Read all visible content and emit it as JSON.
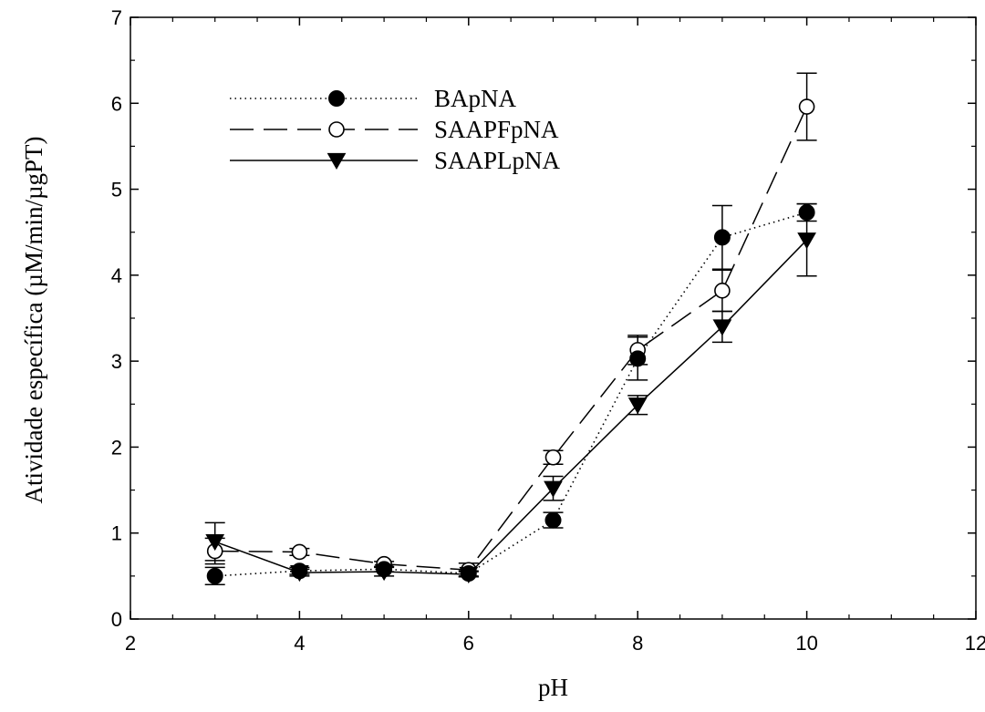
{
  "chart_data": {
    "type": "line",
    "title": "",
    "xlabel": "pH",
    "ylabel": "Atividade específica (µM/min/µgPT)",
    "xlim": [
      2,
      12
    ],
    "ylim": [
      0,
      7
    ],
    "x_ticks": [
      "2",
      "4",
      "6",
      "8",
      "10",
      "12"
    ],
    "y_ticks": [
      "0",
      "1",
      "2",
      "3",
      "4",
      "5",
      "6",
      "7"
    ],
    "grid": false,
    "legend_position": "top-left",
    "x": [
      3,
      4,
      5,
      6,
      7,
      8,
      9,
      10
    ],
    "series": [
      {
        "name": "BApNA",
        "marker": "filled-circle",
        "line_style": "dotted",
        "values": [
          0.5,
          0.56,
          0.58,
          0.53,
          1.15,
          3.03,
          4.44,
          4.73
        ],
        "error": [
          0.1,
          0.04,
          0.03,
          0.03,
          0.09,
          0.25,
          0.37,
          0.1
        ]
      },
      {
        "name": "SAAPFpNA",
        "marker": "open-circle",
        "line_style": "dashed",
        "values": [
          0.79,
          0.78,
          0.64,
          0.57,
          1.88,
          3.13,
          3.82,
          5.96
        ],
        "error": [
          0.15,
          0.04,
          0.03,
          0.08,
          0.08,
          0.17,
          0.24,
          0.39
        ]
      },
      {
        "name": "SAAPLpNA",
        "marker": "filled-triangle-down",
        "line_style": "solid",
        "values": [
          0.9,
          0.54,
          0.55,
          0.52,
          1.52,
          2.49,
          3.4,
          4.41
        ],
        "error": [
          0.22,
          0.04,
          0.05,
          0.03,
          0.14,
          0.11,
          0.18,
          0.42
        ]
      }
    ]
  }
}
